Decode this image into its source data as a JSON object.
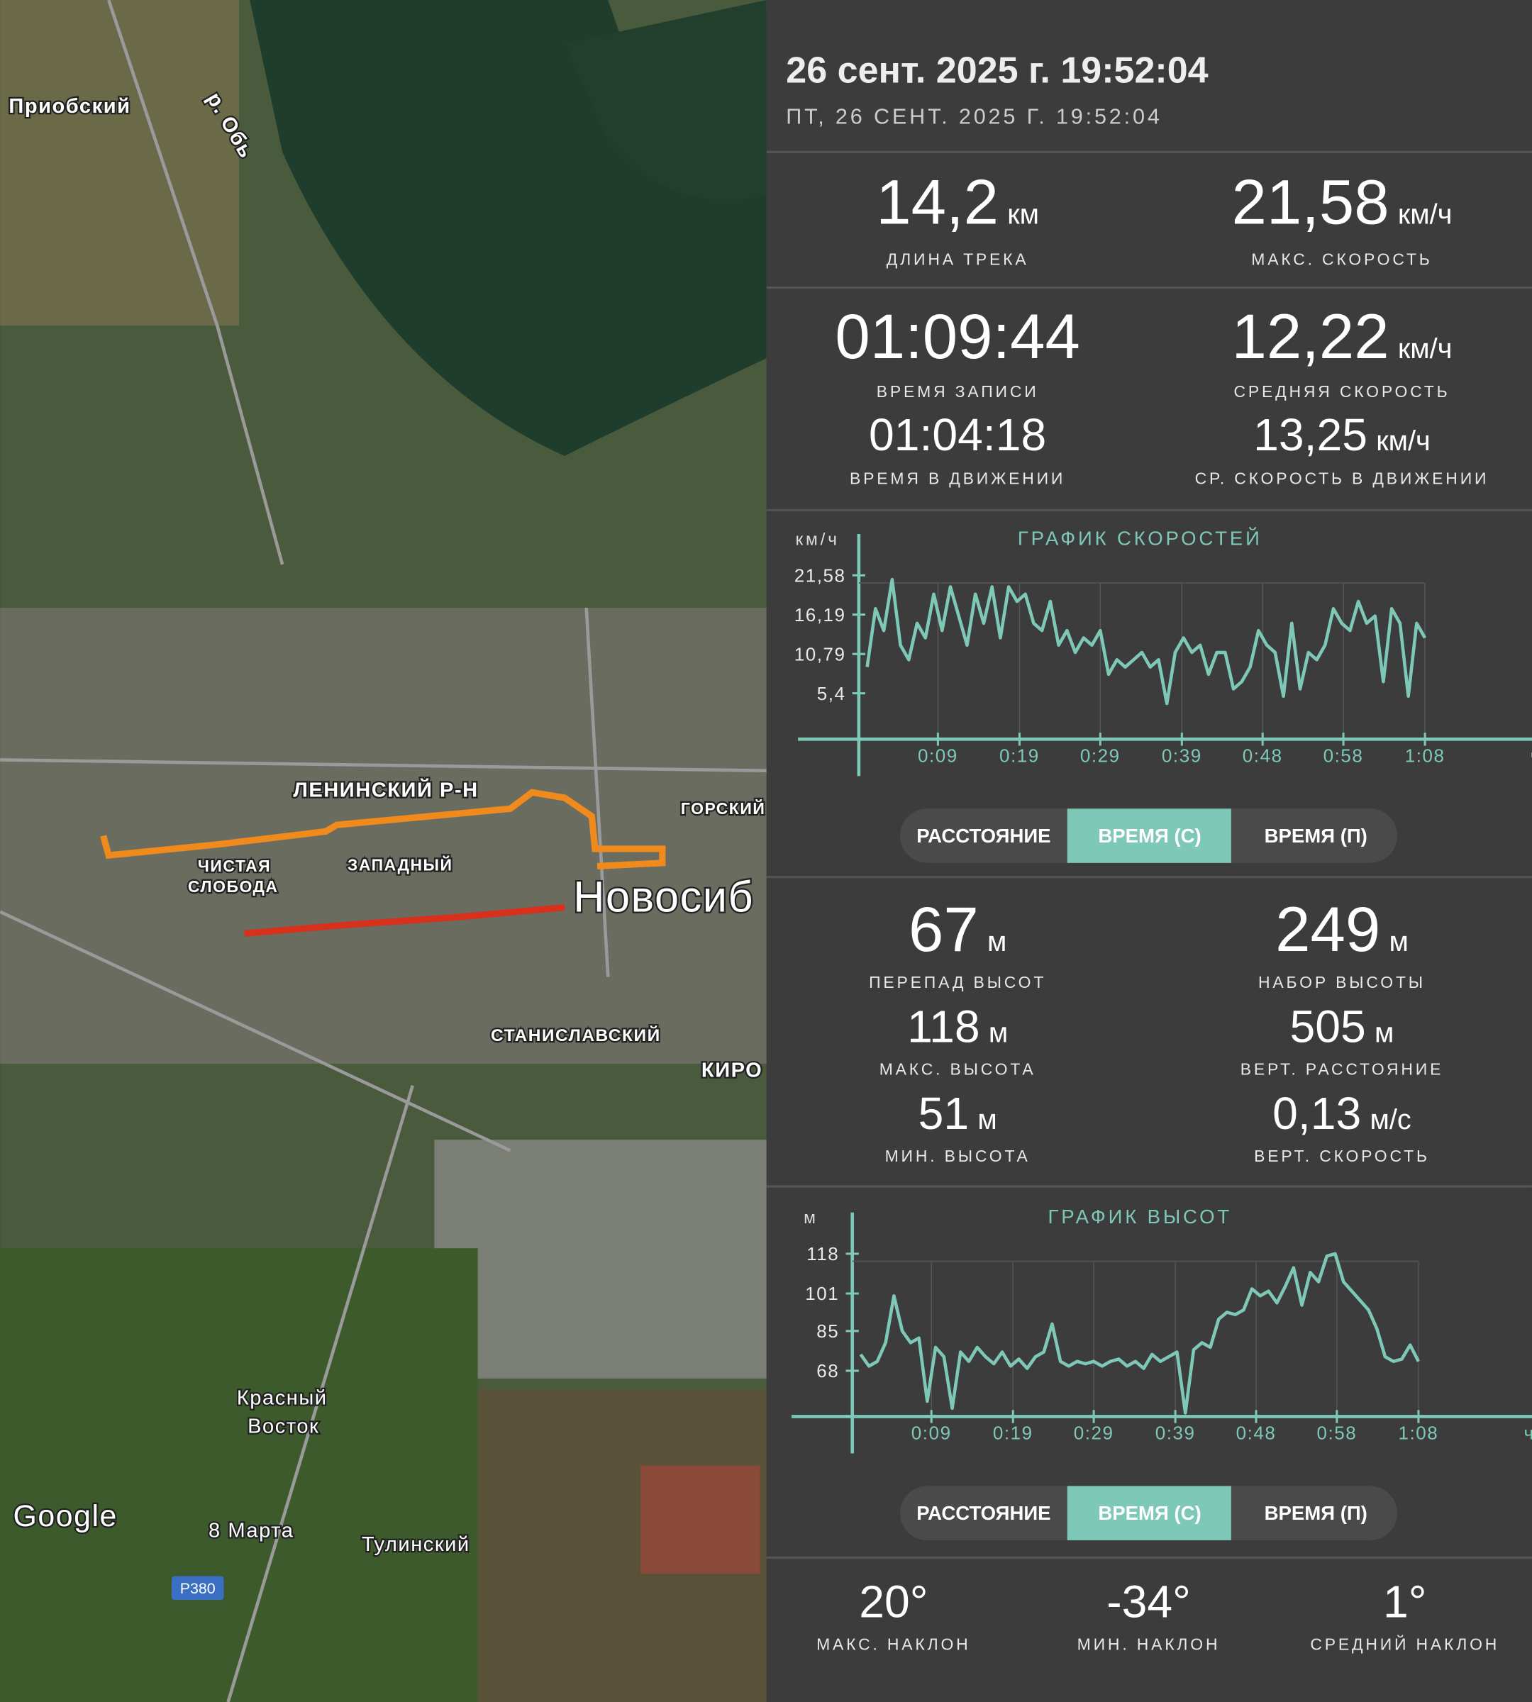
{
  "map": {
    "labels": [
      "Приобский",
      "р. Обь",
      "ЛЕНИНСКИЙ Р-Н",
      "ГОРСКИЙ",
      "ЧИСТАЯ",
      "СЛОБОДА",
      "ЗАПАДНЫЙ",
      "Новосиб",
      "СТАНИСЛАВСКИЙ",
      "КИРО",
      "Красный",
      "Восток",
      "8 Марта",
      "Тулинский",
      "Р380",
      "Google"
    ]
  },
  "header": {
    "title": "26 сент. 2025 г. 19:52:04",
    "subtitle": "ПТ, 26 СЕНТ. 2025 Г. 19:52:04"
  },
  "stats": {
    "track_length": {
      "value": "14,2",
      "unit": "км",
      "label": "ДЛИНА ТРЕКА"
    },
    "max_speed": {
      "value": "21,58",
      "unit": "км/ч",
      "label": "МАКС. СКОРОСТЬ"
    },
    "record_time": {
      "value": "01:09:44",
      "label": "ВРЕМЯ ЗАПИСИ"
    },
    "avg_speed": {
      "value": "12,22",
      "unit": "км/ч",
      "label": "СРЕДНЯЯ СКОРОСТЬ"
    },
    "moving_time": {
      "value": "01:04:18",
      "label": "ВРЕМЯ В ДВИЖЕНИИ"
    },
    "moving_avg_speed": {
      "value": "13,25",
      "unit": "км/ч",
      "label": "СР. СКОРОСТЬ В ДВИЖЕНИИ"
    }
  },
  "speed_chart": {
    "type": "line",
    "title": "ГРАФИК СКОРОСТЕЙ",
    "y_unit": "км/ч",
    "x_unit": "ч:м",
    "color": "#7ec8b8",
    "x": [
      1,
      2,
      3,
      4,
      5,
      6,
      7,
      8,
      9,
      10,
      11,
      12,
      13,
      14,
      15,
      16,
      17,
      18,
      19,
      20,
      21,
      22,
      23,
      24,
      25,
      26,
      27,
      28,
      29,
      30,
      31,
      32,
      33,
      34,
      35,
      36,
      37,
      38,
      39,
      40,
      41,
      42,
      43,
      44,
      45,
      46,
      47,
      48,
      49,
      50,
      51,
      52,
      53,
      54,
      55,
      56,
      57,
      58,
      59,
      60,
      61,
      62,
      63,
      64,
      65,
      66,
      67,
      68
    ],
    "values": [
      9,
      17,
      14,
      21,
      12,
      10,
      15,
      13,
      19,
      14,
      20,
      16,
      12,
      19,
      15,
      20,
      13,
      20,
      18,
      19,
      15,
      14,
      18,
      12,
      14,
      11,
      13,
      12,
      14,
      8,
      10,
      9,
      10,
      11,
      9,
      10,
      4,
      11,
      13,
      11,
      12,
      8,
      11,
      11,
      6,
      7,
      9,
      14,
      12,
      11,
      5,
      15,
      6,
      11,
      10,
      12,
      17,
      15,
      14,
      18,
      15,
      16,
      7,
      17,
      15,
      5,
      15,
      13
    ],
    "xlim": [
      0,
      76.8
    ],
    "ylim": [
      0,
      21.58
    ],
    "yticks": [
      {
        "value": 21.58,
        "label": "21,58"
      },
      {
        "value": 16.19,
        "label": "16,19"
      },
      {
        "value": 10.79,
        "label": "10,79"
      },
      {
        "value": 5.4,
        "label": "5,4"
      }
    ],
    "xticks": [
      {
        "value": 9.5,
        "label": "0:09"
      },
      {
        "value": 19.3,
        "label": "0:19"
      },
      {
        "value": 29,
        "label": "0:29"
      },
      {
        "value": 38.8,
        "label": "0:39"
      },
      {
        "value": 48.5,
        "label": "0:48"
      },
      {
        "value": 58.2,
        "label": "0:58"
      },
      {
        "value": 68,
        "label": "1:08"
      }
    ]
  },
  "speed_toggle": {
    "buttons": [
      "РАССТОЯНИЕ",
      "ВРЕМЯ (С)",
      "ВРЕМЯ (П)"
    ]
  },
  "elevation_stats": {
    "elevation_range": {
      "value": "67",
      "unit": "м",
      "label": "ПЕРЕПАД ВЫСОТ"
    },
    "elevation_gain": {
      "value": "249",
      "unit": "м",
      "label": "НАБОР ВЫСОТЫ"
    },
    "max_elevation": {
      "value": "118",
      "unit": "м",
      "label": "МАКС. ВЫСОТА"
    },
    "vertical_distance": {
      "value": "505",
      "unit": "м",
      "label": "ВЕРТ. РАССТОЯНИЕ"
    },
    "min_elevation": {
      "value": "51",
      "unit": "м",
      "label": "МИН. ВЫСОТА"
    },
    "vertical_speed": {
      "value": "0,13",
      "unit": "м/с",
      "label": "ВЕРТ. СКОРОСТЬ"
    }
  },
  "elevation_chart": {
    "type": "line",
    "title": "ГРАФИК ВЫСОТ",
    "y_unit": "м",
    "x_unit": "ч:м",
    "color": "#7ec8b8",
    "x": [
      1,
      2,
      3,
      4,
      5,
      6,
      7,
      8,
      9,
      10,
      11,
      12,
      13,
      14,
      15,
      16,
      17,
      18,
      19,
      20,
      21,
      22,
      23,
      24,
      25,
      26,
      27,
      28,
      29,
      30,
      31,
      32,
      33,
      34,
      35,
      36,
      37,
      38,
      39,
      40,
      41,
      42,
      43,
      44,
      45,
      46,
      47,
      48,
      49,
      50,
      51,
      52,
      53,
      54,
      55,
      56,
      57,
      58,
      59,
      60,
      61,
      62,
      63,
      64,
      65,
      66,
      67,
      68
    ],
    "values": [
      75,
      70,
      72,
      80,
      100,
      85,
      80,
      82,
      55,
      78,
      74,
      52,
      76,
      72,
      78,
      74,
      71,
      76,
      70,
      73,
      69,
      74,
      76,
      88,
      72,
      70,
      72,
      71,
      72,
      70,
      72,
      73,
      70,
      72,
      69,
      75,
      72,
      74,
      76,
      50,
      77,
      80,
      78,
      90,
      93,
      92,
      94,
      103,
      100,
      102,
      97,
      104,
      112,
      96,
      110,
      106,
      117,
      118,
      106,
      102,
      98,
      94,
      86,
      74,
      72,
      73,
      79,
      72
    ],
    "xlim": [
      0,
      76.8
    ],
    "ylim": [
      48,
      118
    ],
    "yticks": [
      118,
      101,
      85,
      68
    ],
    "xticks": [
      {
        "value": 9.5,
        "label": "0:09"
      },
      {
        "value": 19.3,
        "label": "0:19"
      },
      {
        "value": 29,
        "label": "0:29"
      },
      {
        "value": 38.8,
        "label": "0:39"
      },
      {
        "value": 48.5,
        "label": "0:48"
      },
      {
        "value": 58.2,
        "label": "0:58"
      },
      {
        "value": 68,
        "label": "1:08"
      }
    ]
  },
  "elevation_toggle": {
    "buttons": [
      "РАССТОЯНИЕ",
      "ВРЕМЯ (С)",
      "ВРЕМЯ (П)"
    ]
  },
  "slope_stats": {
    "max_slope": {
      "value": "20°",
      "label": "МАКС. НАКЛОН"
    },
    "min_slope": {
      "value": "-34°",
      "label": "МИН. НАКЛОН"
    },
    "avg_slope": {
      "value": "1°",
      "label": "СРЕДНИЙ НАКЛОН"
    }
  }
}
